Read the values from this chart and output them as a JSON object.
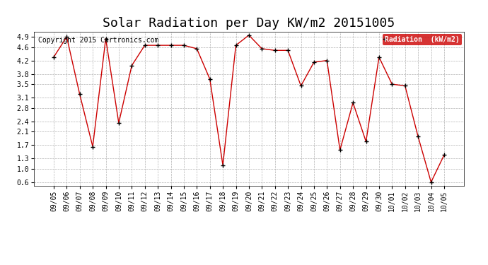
{
  "title": "Solar Radiation per Day KW/m2 20151005",
  "copyright_text": "Copyright 2015 Cartronics.com",
  "legend_label": "Radiation  (kW/m2)",
  "dates": [
    "09/05",
    "09/06",
    "09/07",
    "09/08",
    "09/09",
    "09/10",
    "09/11",
    "09/12",
    "09/13",
    "09/14",
    "09/15",
    "09/16",
    "09/17",
    "09/18",
    "09/19",
    "09/20",
    "09/21",
    "09/22",
    "09/23",
    "09/24",
    "09/25",
    "09/26",
    "09/27",
    "09/28",
    "09/29",
    "09/30",
    "10/01",
    "10/02",
    "10/03",
    "10/04",
    "10/05"
  ],
  "values": [
    4.3,
    4.9,
    3.2,
    1.65,
    4.85,
    2.35,
    4.05,
    4.65,
    4.65,
    4.65,
    4.65,
    4.55,
    3.65,
    1.1,
    4.65,
    4.95,
    4.55,
    4.5,
    4.5,
    3.45,
    4.15,
    4.2,
    1.55,
    2.95,
    1.8,
    4.3,
    3.5,
    3.45,
    1.95,
    0.6,
    1.4
  ],
  "line_color": "#cc0000",
  "marker_color": "black",
  "bg_color": "#ffffff",
  "grid_color": "#aaaaaa",
  "ylim": [
    0.5,
    5.05
  ],
  "yticks": [
    0.6,
    1.0,
    1.3,
    1.7,
    2.1,
    2.4,
    2.8,
    3.1,
    3.5,
    3.8,
    4.2,
    4.6,
    4.9
  ],
  "legend_bg": "#cc0000",
  "legend_text_color": "white",
  "title_fontsize": 13,
  "tick_fontsize": 7,
  "copyright_fontsize": 7
}
